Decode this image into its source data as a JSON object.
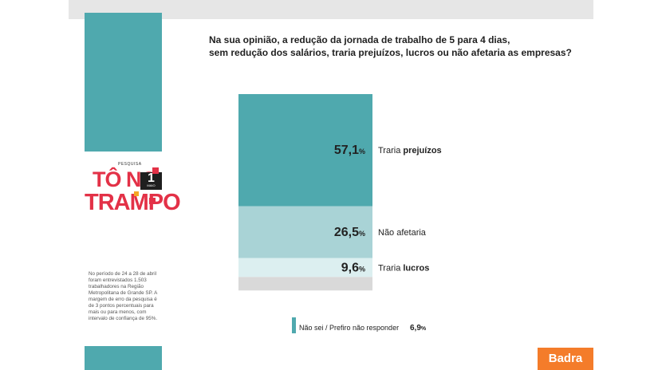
{
  "question_line1": "Na sua opinião, a redução da jornada de trabalho de 5 para 4 dias,",
  "question_line2": "sem redução dos salários, traria prejuízos, lucros ou não afetaria as empresas?",
  "logo": {
    "pesquisa": "PESQUISA",
    "line1": "TÔ NO",
    "line2": "TRAMPO",
    "badge_num": "1",
    "badge_sub": "MAIO"
  },
  "note": "No período de 24 a 28 de abril foram entrevistados 1.503 trabalhadores na Região Metropolitana de Grande SP. A margem de erro da pesquisa é de 3 pontos percentuais para mais ou para menos, com intervalo de confiança de 95%.",
  "brand": "Badra",
  "chart_data": {
    "type": "bar",
    "stacked": true,
    "orientation": "vertical",
    "categories": [
      "Traria prejuízos",
      "Não afetaria",
      "Traria lucros",
      "Não sei / Prefiro não responder"
    ],
    "values": [
      57.1,
      26.5,
      9.6,
      6.9
    ],
    "value_labels": [
      "57,1",
      "26,5",
      "9,6",
      "6,9"
    ],
    "unit": "%",
    "label_prefix": [
      "Traria ",
      "",
      "Traria ",
      ""
    ],
    "label_bold": [
      "prejuízos",
      "",
      "lucros",
      ""
    ],
    "label_plain": [
      "",
      "Não afetaria",
      "",
      ""
    ],
    "colors": [
      "#4fa9ae",
      "#a9d3d6",
      "#dceff0",
      "#d9d9d9"
    ],
    "legend": {
      "label": "Não sei / Prefiro não responder",
      "value": "6,9",
      "unit": "%",
      "color": "#4fa9ae"
    },
    "total": 100
  }
}
